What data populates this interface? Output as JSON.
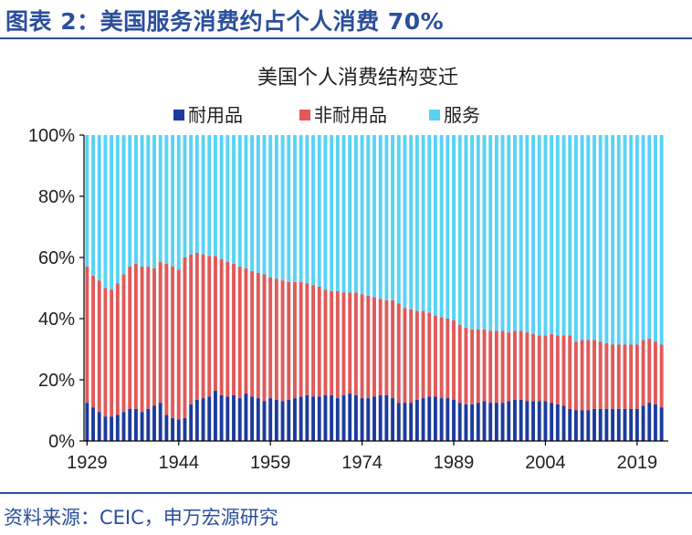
{
  "figure_title": "图表 2：美国服务消费约占个人消费 70%",
  "source_note": "资料来源：CEIC，申万宏源研究",
  "colors": {
    "durable": "#1c3b9c",
    "nondurable": "#e05a5a",
    "services": "#58d3f5",
    "axis": "#000000",
    "accent": "#2b4f9c"
  },
  "chart_data": {
    "type": "bar",
    "stacked": true,
    "title": "美国个人消费结构变迁",
    "xlabel": "",
    "ylabel": "",
    "ylim": [
      0,
      100
    ],
    "y_ticks": [
      "0%",
      "20%",
      "40%",
      "60%",
      "80%",
      "100%"
    ],
    "x_tick_labels": [
      "1929",
      "1944",
      "1959",
      "1974",
      "1989",
      "2004",
      "2019"
    ],
    "legend": [
      "耐用品",
      "非耐用品",
      "服务"
    ],
    "legend_position": "top",
    "categories": [
      1929,
      1930,
      1931,
      1932,
      1933,
      1934,
      1935,
      1936,
      1937,
      1938,
      1939,
      1940,
      1941,
      1942,
      1943,
      1944,
      1945,
      1946,
      1947,
      1948,
      1949,
      1950,
      1951,
      1952,
      1953,
      1954,
      1955,
      1956,
      1957,
      1958,
      1959,
      1960,
      1961,
      1962,
      1963,
      1964,
      1965,
      1966,
      1967,
      1968,
      1969,
      1970,
      1971,
      1972,
      1973,
      1974,
      1975,
      1976,
      1977,
      1978,
      1979,
      1980,
      1981,
      1982,
      1983,
      1984,
      1985,
      1986,
      1987,
      1988,
      1989,
      1990,
      1991,
      1992,
      1993,
      1994,
      1995,
      1996,
      1997,
      1998,
      1999,
      2000,
      2001,
      2002,
      2003,
      2004,
      2005,
      2006,
      2007,
      2008,
      2009,
      2010,
      2011,
      2012,
      2013,
      2014,
      2015,
      2016,
      2017,
      2018,
      2019,
      2020,
      2021,
      2022,
      2023
    ],
    "series": [
      {
        "name": "耐用品",
        "values": [
          12.5,
          11.0,
          9.5,
          8.0,
          8.0,
          8.5,
          9.5,
          10.5,
          10.5,
          9.5,
          10.5,
          11.5,
          12.5,
          8.5,
          7.5,
          7.0,
          7.5,
          12.0,
          13.5,
          14.0,
          14.5,
          16.5,
          15.0,
          14.5,
          15.0,
          14.0,
          15.5,
          14.5,
          14.0,
          13.0,
          14.0,
          13.5,
          13.0,
          13.5,
          14.0,
          14.5,
          15.0,
          14.5,
          14.5,
          15.0,
          15.0,
          14.0,
          15.0,
          15.5,
          15.0,
          14.0,
          14.0,
          14.5,
          15.0,
          15.0,
          14.0,
          12.5,
          12.5,
          12.5,
          13.5,
          14.0,
          14.5,
          14.5,
          14.0,
          14.0,
          13.5,
          12.5,
          12.0,
          12.0,
          12.5,
          13.0,
          12.5,
          12.5,
          12.5,
          13.0,
          13.5,
          13.5,
          13.0,
          13.0,
          13.0,
          13.0,
          12.5,
          12.0,
          11.5,
          10.5,
          10.0,
          10.0,
          10.0,
          10.5,
          10.5,
          10.5,
          10.5,
          10.5,
          10.5,
          10.5,
          10.5,
          11.5,
          12.5,
          12.0,
          11.0
        ]
      },
      {
        "name": "非耐用品",
        "values": [
          44.5,
          43.0,
          43.0,
          42.0,
          41.5,
          43.0,
          45.0,
          46.5,
          47.5,
          47.5,
          46.5,
          45.0,
          46.0,
          49.5,
          49.5,
          49.0,
          52.5,
          49.0,
          48.0,
          47.0,
          46.0,
          44.0,
          44.5,
          44.0,
          43.0,
          43.0,
          41.0,
          41.0,
          41.0,
          41.5,
          39.5,
          39.5,
          39.5,
          38.5,
          38.0,
          37.5,
          36.5,
          36.5,
          36.0,
          34.5,
          34.0,
          35.0,
          33.5,
          33.0,
          33.5,
          34.0,
          33.5,
          32.5,
          31.5,
          31.0,
          32.0,
          32.5,
          31.0,
          30.5,
          29.0,
          28.5,
          27.5,
          26.5,
          26.5,
          26.0,
          26.0,
          25.5,
          25.0,
          24.5,
          24.0,
          23.5,
          23.5,
          23.5,
          23.5,
          22.5,
          22.5,
          22.5,
          22.5,
          22.0,
          21.5,
          21.5,
          22.5,
          22.5,
          23.0,
          24.0,
          22.5,
          23.0,
          23.0,
          22.5,
          22.0,
          21.5,
          21.0,
          21.0,
          21.0,
          21.0,
          21.0,
          21.5,
          21.0,
          20.5,
          20.5
        ]
      },
      {
        "name": "服务",
        "values": [
          43.0,
          46.0,
          47.5,
          50.0,
          50.5,
          48.5,
          45.5,
          43.0,
          42.0,
          43.0,
          43.0,
          43.5,
          41.5,
          42.0,
          43.0,
          44.0,
          40.0,
          39.0,
          38.5,
          39.0,
          39.5,
          39.5,
          40.5,
          41.5,
          42.0,
          43.0,
          43.5,
          44.5,
          45.0,
          45.5,
          46.5,
          47.0,
          47.5,
          48.0,
          48.0,
          48.0,
          48.5,
          49.0,
          49.5,
          50.5,
          51.0,
          51.0,
          51.5,
          51.5,
          51.5,
          52.0,
          52.5,
          53.0,
          53.5,
          54.0,
          54.0,
          55.0,
          56.5,
          57.0,
          57.5,
          57.5,
          58.0,
          59.0,
          59.5,
          60.0,
          60.5,
          62.0,
          63.0,
          63.5,
          63.5,
          63.5,
          64.0,
          64.0,
          64.0,
          64.5,
          64.0,
          64.0,
          64.5,
          65.0,
          65.5,
          65.5,
          65.0,
          65.5,
          65.5,
          65.5,
          67.5,
          67.0,
          67.0,
          67.0,
          67.5,
          68.0,
          68.5,
          68.5,
          68.5,
          68.5,
          68.5,
          67.0,
          66.5,
          67.5,
          68.5
        ]
      }
    ]
  }
}
